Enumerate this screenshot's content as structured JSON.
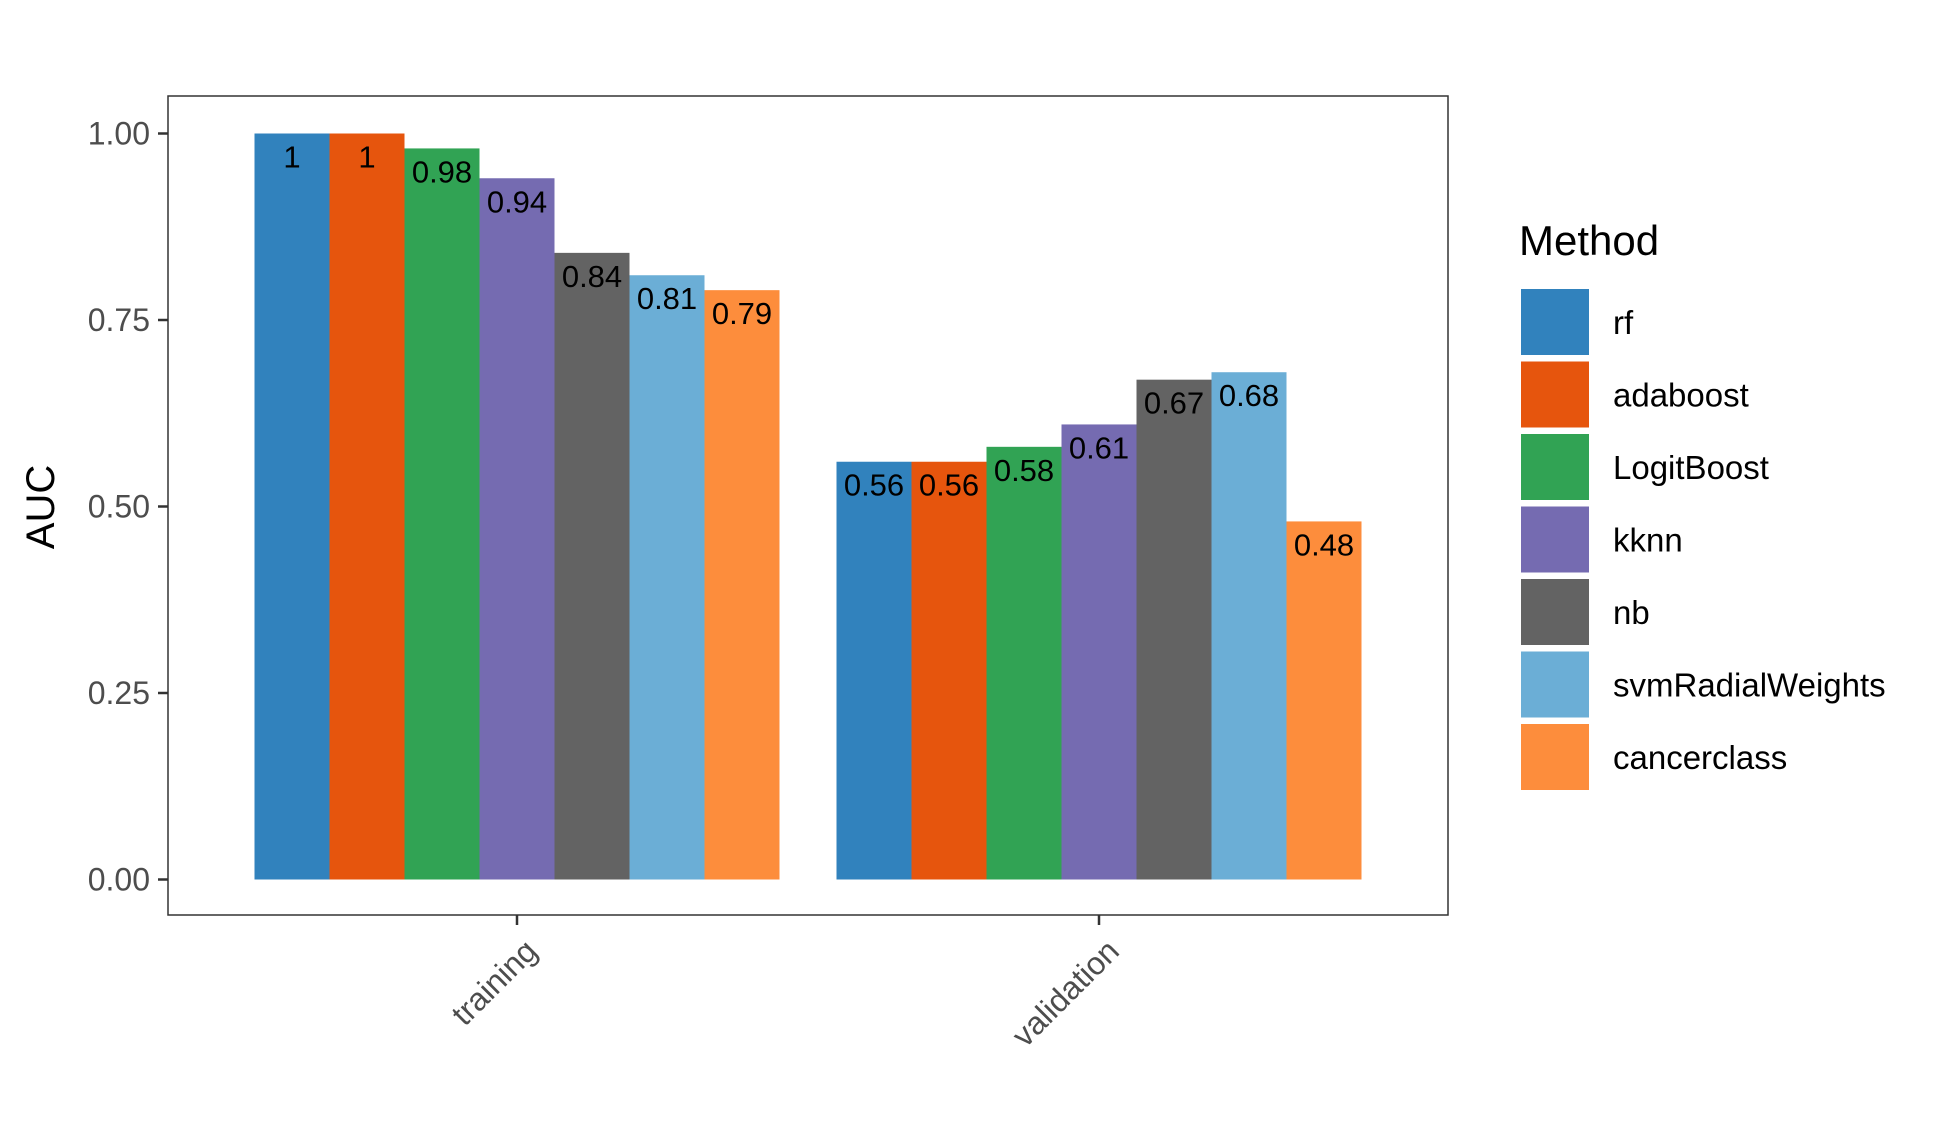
{
  "chart_data": {
    "type": "bar",
    "title": "",
    "xlabel": "",
    "ylabel": "AUC",
    "ylim": [
      0,
      1.05
    ],
    "yticks": [
      0.0,
      0.25,
      0.5,
      0.75,
      1.0
    ],
    "ytick_labels": [
      "0.00",
      "0.25",
      "0.50",
      "0.75",
      "1.00"
    ],
    "categories": [
      "training",
      "validation"
    ],
    "legend": {
      "title": "Method",
      "placement": "right"
    },
    "grid": false,
    "series": [
      {
        "name": "rf",
        "color": "#3182BD",
        "values": [
          1.0,
          0.56
        ],
        "labels": [
          "1",
          "0.56"
        ]
      },
      {
        "name": "adaboost",
        "color": "#E6550D",
        "values": [
          1.0,
          0.56
        ],
        "labels": [
          "1",
          "0.56"
        ]
      },
      {
        "name": "LogitBoost",
        "color": "#31A354",
        "values": [
          0.98,
          0.58
        ],
        "labels": [
          "0.98",
          "0.58"
        ]
      },
      {
        "name": "kknn",
        "color": "#756BB1",
        "values": [
          0.94,
          0.61
        ],
        "labels": [
          "0.94",
          "0.61"
        ]
      },
      {
        "name": "nb",
        "color": "#636363",
        "values": [
          0.84,
          0.67
        ],
        "labels": [
          "0.84",
          "0.67"
        ]
      },
      {
        "name": "svmRadialWeights",
        "color": "#6BAED6",
        "values": [
          0.81,
          0.68
        ],
        "labels": [
          "0.81",
          "0.68"
        ]
      },
      {
        "name": "cancerclass",
        "color": "#FD8D3C",
        "values": [
          0.79,
          0.48
        ],
        "labels": [
          "0.79",
          "0.48"
        ]
      }
    ]
  }
}
